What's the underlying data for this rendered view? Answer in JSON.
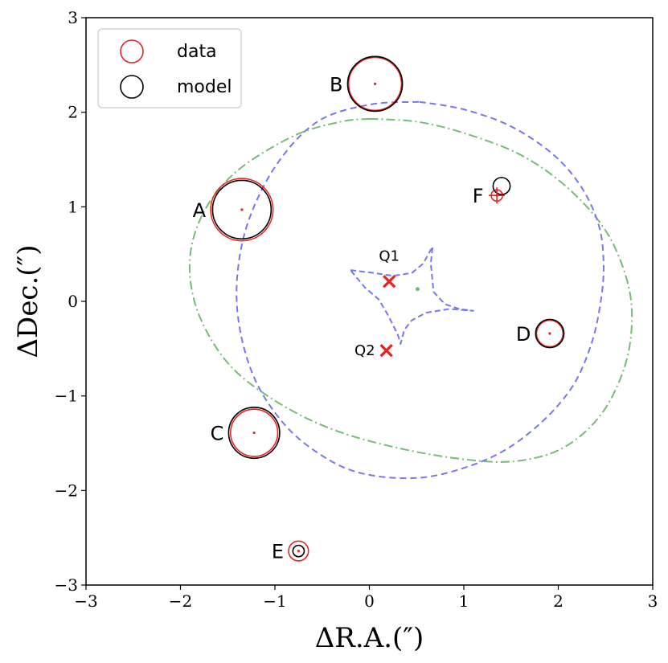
{
  "chart_data": {
    "type": "scatter",
    "xlabel": "ΔR.A.(″)",
    "ylabel": "ΔDec.(″)",
    "xlim": [
      -3,
      3
    ],
    "ylim": [
      -3,
      3
    ],
    "xticks": [
      -3,
      -2,
      -1,
      0,
      1,
      2,
      3
    ],
    "yticks": [
      -3,
      -2,
      -1,
      0,
      1,
      2,
      3
    ],
    "xtick_labels": [
      "−3",
      "−2",
      "−1",
      "0",
      "1",
      "2",
      "3"
    ],
    "ytick_labels": [
      "−3",
      "−2",
      "−1",
      "0",
      "1",
      "2",
      "3"
    ],
    "legend": {
      "position": "top-left",
      "entries": [
        {
          "label": "data",
          "color": "#e8231f"
        },
        {
          "label": "model",
          "color": "#000000"
        }
      ]
    },
    "images": [
      {
        "label": "A",
        "x": -1.35,
        "y": 0.97,
        "data_r": 0.33,
        "model_r": 0.31
      },
      {
        "label": "B",
        "x": 0.06,
        "y": 2.3,
        "data_r": 0.28,
        "model_r": 0.29
      },
      {
        "label": "C",
        "x": -1.22,
        "y": -1.39,
        "data_r": 0.25,
        "model_r": 0.27
      },
      {
        "label": "D",
        "x": 1.91,
        "y": -0.34,
        "data_r": 0.14,
        "model_r": 0.15
      },
      {
        "label": "E",
        "x": -0.75,
        "y": -2.64,
        "data_r": 0.105,
        "model_r": 0.06
      },
      {
        "label": "F",
        "x": 1.35,
        "y": 1.12,
        "data_r": 0.06,
        "model_r": 0.09,
        "model_x": 1.4,
        "model_y": 1.22
      }
    ],
    "sources": [
      {
        "label": "Q1",
        "x": 0.21,
        "y": 0.21
      },
      {
        "label": "Q2",
        "x": 0.18,
        "y": -0.52
      }
    ],
    "lens_center": {
      "x": 0.51,
      "y": 0.13
    },
    "critical_curve": {
      "name": "critical curve",
      "color": "#7777f0",
      "style": "dashed",
      "points": [
        [
          0.53,
          2.11
        ],
        [
          1.0,
          2.03
        ],
        [
          1.5,
          1.85
        ],
        [
          1.95,
          1.55
        ],
        [
          2.25,
          1.2
        ],
        [
          2.43,
          0.8
        ],
        [
          2.48,
          0.4
        ],
        [
          2.45,
          0.0
        ],
        [
          2.35,
          -0.45
        ],
        [
          2.15,
          -0.9
        ],
        [
          1.8,
          -1.3
        ],
        [
          1.35,
          -1.62
        ],
        [
          0.8,
          -1.82
        ],
        [
          0.35,
          -1.87
        ],
        [
          -0.15,
          -1.8
        ],
        [
          -0.55,
          -1.6
        ],
        [
          -0.9,
          -1.3
        ],
        [
          -1.2,
          -0.85
        ],
        [
          -1.37,
          -0.3
        ],
        [
          -1.4,
          0.25
        ],
        [
          -1.28,
          0.85
        ],
        [
          -0.98,
          1.45
        ],
        [
          -0.55,
          1.9
        ],
        [
          0.0,
          2.08
        ],
        [
          0.53,
          2.11
        ]
      ]
    },
    "caustic": {
      "name": "caustic",
      "color": "#7777f0",
      "style": "dashed",
      "points": [
        [
          -0.2,
          0.33
        ],
        [
          0.05,
          0.3
        ],
        [
          0.25,
          0.27
        ],
        [
          0.45,
          0.3
        ],
        [
          0.57,
          0.4
        ],
        [
          0.67,
          0.58
        ],
        [
          0.65,
          0.4
        ],
        [
          0.68,
          0.1
        ],
        [
          0.8,
          -0.03
        ],
        [
          0.95,
          -0.08
        ],
        [
          1.1,
          -0.1
        ],
        [
          0.85,
          -0.08
        ],
        [
          0.6,
          -0.12
        ],
        [
          0.45,
          -0.2
        ],
        [
          0.37,
          -0.3
        ],
        [
          0.33,
          -0.45
        ],
        [
          0.3,
          -0.35
        ],
        [
          0.2,
          -0.15
        ],
        [
          0.1,
          0.02
        ],
        [
          -0.05,
          0.15
        ],
        [
          -0.2,
          0.33
        ]
      ]
    },
    "outer_curve": {
      "name": "outer curve",
      "color": "#77bb77",
      "style": "dashdot",
      "points": [
        [
          0.0,
          1.93
        ],
        [
          0.5,
          1.9
        ],
        [
          1.0,
          1.78
        ],
        [
          1.6,
          1.55
        ],
        [
          2.1,
          1.2
        ],
        [
          2.5,
          0.75
        ],
        [
          2.72,
          0.25
        ],
        [
          2.78,
          -0.2
        ],
        [
          2.7,
          -0.7
        ],
        [
          2.45,
          -1.2
        ],
        [
          2.05,
          -1.55
        ],
        [
          1.55,
          -1.69
        ],
        [
          1.0,
          -1.67
        ],
        [
          0.3,
          -1.55
        ],
        [
          -0.4,
          -1.35
        ],
        [
          -1.0,
          -1.05
        ],
        [
          -1.5,
          -0.65
        ],
        [
          -1.82,
          -0.1
        ],
        [
          -1.9,
          0.45
        ],
        [
          -1.75,
          0.95
        ],
        [
          -1.4,
          1.38
        ],
        [
          -0.8,
          1.75
        ],
        [
          -0.3,
          1.9
        ],
        [
          0.0,
          1.93
        ]
      ]
    }
  }
}
